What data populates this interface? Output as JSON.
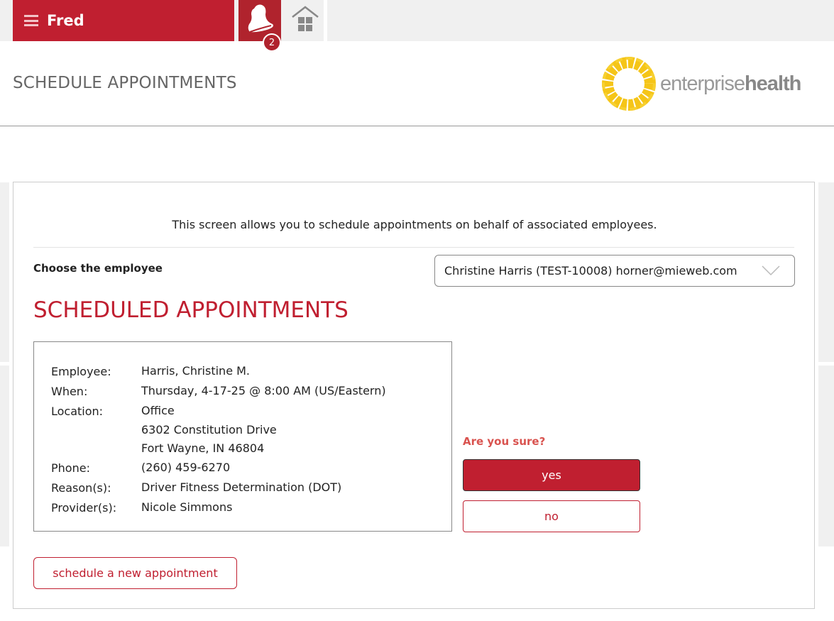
{
  "header": {
    "user_name": "Fred",
    "notification_count": "2",
    "page_title": "SCHEDULE APPOINTMENTS",
    "logo_text_light": "enterprise",
    "logo_text_bold": "health"
  },
  "colors": {
    "brand": "#c01f30",
    "warning": "#d9534f",
    "logo_yellow": "#f5c518"
  },
  "main": {
    "intro": "This screen allows you to schedule appointments on behalf of associated employees.",
    "choose_label": "Choose the employee",
    "employee_select": "Christine Harris (TEST-10008) horner@mieweb.com",
    "section_title": "SCHEDULED APPOINTMENTS",
    "appointment": [
      {
        "label": "Employee:",
        "value": "Harris, Christine M."
      },
      {
        "label": "When:",
        "value": "Thursday, 4-17-25 @ 8:00 AM (US/Eastern)"
      },
      {
        "label": "Location:",
        "value": "Office",
        "extra": [
          "6302 Constitution Drive",
          "Fort Wayne, IN 46804"
        ]
      },
      {
        "label": "Phone:",
        "value": "(260) 459-6270"
      },
      {
        "label": "Reason(s):",
        "value": "Driver Fitness Determination (DOT)"
      },
      {
        "label": "Provider(s):",
        "value": "Nicole Simmons"
      }
    ],
    "confirm_prompt": "Are you sure?",
    "yes_label": "yes",
    "no_label": "no",
    "new_appointment_label": "schedule a new appointment"
  }
}
